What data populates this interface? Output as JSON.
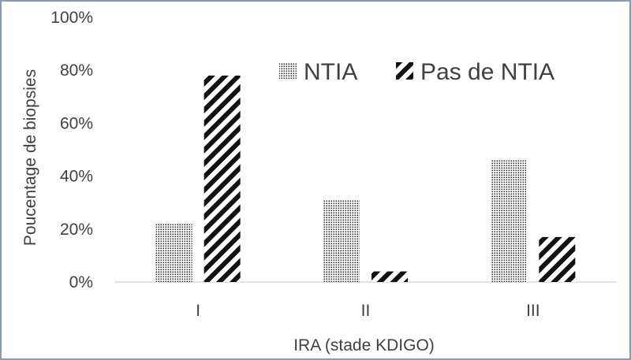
{
  "chart_data": {
    "type": "bar",
    "title": "",
    "xlabel": "IRA (stade KDIGO)",
    "ylabel": "Poucentage de biopsies",
    "categories": [
      "I",
      "II",
      "III"
    ],
    "series": [
      {
        "name": "NTIA",
        "values": [
          22,
          31,
          46
        ],
        "pattern": "dots"
      },
      {
        "name": "Pas de NTIA",
        "values": [
          78,
          4,
          17
        ],
        "pattern": "stripes"
      }
    ],
    "ylim": [
      0,
      100
    ],
    "yticks": [
      "0%",
      "20%",
      "40%",
      "60%",
      "80%",
      "100%"
    ],
    "ytick_values": [
      0,
      20,
      40,
      60,
      80,
      100
    ],
    "grid": false,
    "legend_position": "top-right",
    "colors": {
      "pattern": "#000000",
      "axis": "#d9d9d9",
      "text": "#404040"
    }
  }
}
